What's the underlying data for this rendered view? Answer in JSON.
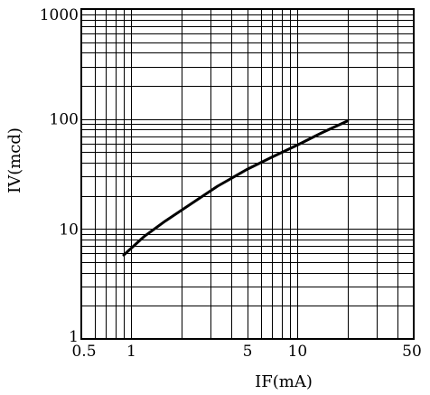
{
  "chart_data": {
    "type": "line",
    "x_scale": "log",
    "y_scale": "log",
    "xlim": [
      0.5,
      50
    ],
    "ylim": [
      1,
      1000
    ],
    "grid": true,
    "xlabel": "IF(mA)",
    "ylabel": "IV(mcd)",
    "x_ticks": [
      {
        "value": 0.5,
        "label": "0.5"
      },
      {
        "value": 1,
        "label": "1"
      },
      {
        "value": 5,
        "label": "5"
      },
      {
        "value": 10,
        "label": "10"
      },
      {
        "value": 50,
        "label": "50"
      }
    ],
    "y_ticks": [
      {
        "value": 1,
        "label": "1"
      },
      {
        "value": 10,
        "label": "10"
      },
      {
        "value": 100,
        "label": "100"
      },
      {
        "value": 1000,
        "label": "1000"
      }
    ],
    "series": [
      {
        "x": [
          0.9,
          1.2,
          1.6,
          2.3,
          3.3,
          5,
          7,
          10,
          14,
          20
        ],
        "y": [
          5.8,
          8.6,
          11.8,
          17,
          24.5,
          35,
          45,
          58,
          75,
          96
        ]
      }
    ]
  }
}
